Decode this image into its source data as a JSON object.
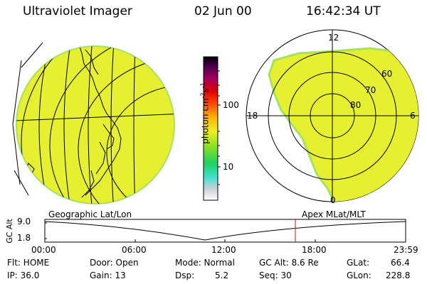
{
  "header": {
    "instrument": "Ultraviolet Imager",
    "date": "02 Jun 00",
    "time": "16:42:34 UT"
  },
  "colorbar": {
    "label_unit": "photon cm",
    "label_exp1": "-2",
    "label_mid": "s",
    "label_exp2": "-1",
    "ticks": [
      "100",
      "10"
    ]
  },
  "polar_plot": {
    "mlt_labels": [
      "12",
      "18",
      "6",
      "0"
    ],
    "lat_labels": [
      "60",
      "70",
      "80"
    ]
  },
  "timeline": {
    "left_title": "Geographic Lat/Lon",
    "right_title": "Apex MLat/MLT",
    "axis_label": "GC Alt",
    "y_ticks": [
      "9.0",
      "1.8"
    ],
    "x_ticks": [
      "00:00",
      "06:00",
      "12:00",
      "18:00",
      "23:59"
    ]
  },
  "status": {
    "flt": "Flt: HOME",
    "ip": "IP: 36.0",
    "door": "Door: Open",
    "gain": "Gain: 13",
    "mode": "Mode: Normal",
    "dsp_label": "Dsp:",
    "dsp_value": "5.2",
    "gc_alt": "GC Alt: 8.6 Re",
    "seq": "Seq: 30",
    "glat_label": "GLat:",
    "glat_value": "66.4",
    "glon_label": "GLon:",
    "glon_value": "228.8"
  },
  "colors": {
    "fill": "#e6f030",
    "edge": "#a8e060",
    "marker": "#ff0000"
  }
}
